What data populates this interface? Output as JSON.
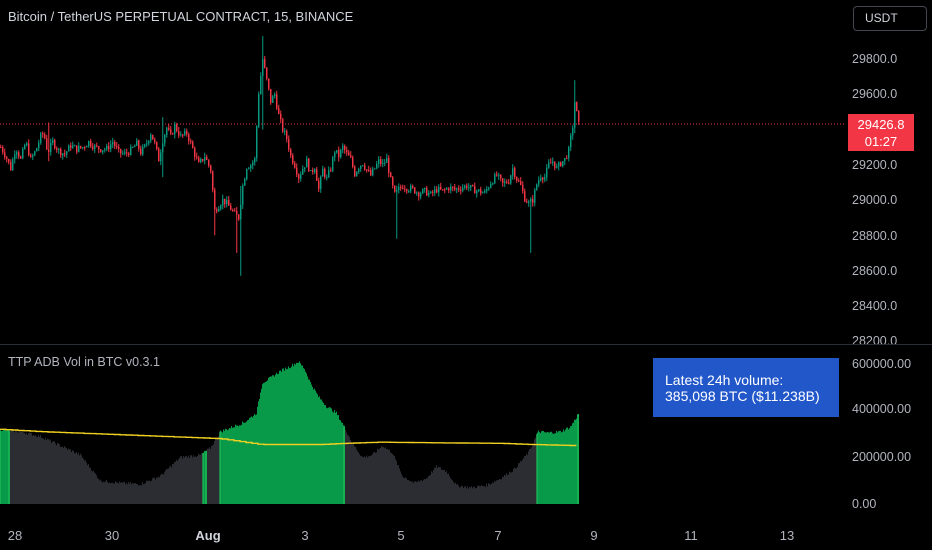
{
  "header": {
    "symbol_title": "Bitcoin / TetherUS PERPETUAL CONTRACT, 15, BINANCE",
    "currency_button": "USDT"
  },
  "price_axis": {
    "labels": [
      "29800.0",
      "29600.0",
      "29400.0",
      "29200.0",
      "29000.0",
      "28800.0",
      "28600.0",
      "28400.0",
      "28200.0"
    ],
    "current_price": "29426.8",
    "countdown": "01:27"
  },
  "indicator": {
    "title": "TTP ADB Vol in BTC v0.3.1",
    "axis_labels": [
      "600000.00",
      "400000.00",
      "200000.00",
      "0.00"
    ],
    "volume_box_line1": "Latest 24h volume:",
    "volume_box_line2": "385,098 BTC ($11.238B)"
  },
  "time_axis": {
    "labels": [
      "28",
      "30",
      "Aug",
      "3",
      "5",
      "7",
      "9",
      "11",
      "13"
    ]
  },
  "colors": {
    "up": "#089981",
    "down": "#f23645",
    "volume_green": "#089949",
    "volume_gray": "#2b2d33",
    "average_line": "#f0d020",
    "info_box": "#2157c9"
  },
  "chart_data": {
    "type": "candlestick",
    "ylim": [
      28200,
      29950
    ],
    "current_price": 29426.8,
    "price_path": [
      [
        0,
        29300
      ],
      [
        5,
        29250
      ],
      [
        10,
        29180
      ],
      [
        15,
        29300
      ],
      [
        20,
        29230
      ],
      [
        25,
        29330
      ],
      [
        30,
        29230
      ],
      [
        35,
        29280
      ],
      [
        40,
        29360
      ],
      [
        43,
        29380
      ],
      [
        47,
        29270
      ],
      [
        52,
        29330
      ],
      [
        58,
        29280
      ],
      [
        64,
        29260
      ],
      [
        70,
        29310
      ],
      [
        76,
        29290
      ],
      [
        82,
        29300
      ],
      [
        88,
        29330
      ],
      [
        94,
        29300
      ],
      [
        100,
        29290
      ],
      [
        106,
        29290
      ],
      [
        112,
        29330
      ],
      [
        118,
        29270
      ],
      [
        124,
        29260
      ],
      [
        130,
        29280
      ],
      [
        136,
        29320
      ],
      [
        140,
        29270
      ],
      [
        145,
        29310
      ],
      [
        150,
        29380
      ],
      [
        154,
        29320
      ],
      [
        158,
        29230
      ],
      [
        162,
        29340
      ],
      [
        166,
        29410
      ],
      [
        170,
        29360
      ],
      [
        174,
        29420
      ],
      [
        180,
        29360
      ],
      [
        186,
        29380
      ],
      [
        192,
        29290
      ],
      [
        198,
        29200
      ],
      [
        204,
        29250
      ],
      [
        210,
        29170
      ],
      [
        214,
        28940
      ],
      [
        218,
        28970
      ],
      [
        222,
        29000
      ],
      [
        226,
        28980
      ],
      [
        230,
        28950
      ],
      [
        234,
        28920
      ],
      [
        238,
        28900
      ],
      [
        242,
        29080
      ],
      [
        246,
        29190
      ],
      [
        250,
        29200
      ],
      [
        254,
        29230
      ],
      [
        258,
        29610
      ],
      [
        262,
        29800
      ],
      [
        266,
        29680
      ],
      [
        270,
        29560
      ],
      [
        274,
        29600
      ],
      [
        278,
        29480
      ],
      [
        282,
        29400
      ],
      [
        286,
        29350
      ],
      [
        290,
        29250
      ],
      [
        294,
        29200
      ],
      [
        298,
        29130
      ],
      [
        302,
        29180
      ],
      [
        306,
        29220
      ],
      [
        310,
        29150
      ],
      [
        314,
        29190
      ],
      [
        318,
        29060
      ],
      [
        322,
        29170
      ],
      [
        326,
        29120
      ],
      [
        330,
        29180
      ],
      [
        334,
        29280
      ],
      [
        338,
        29250
      ],
      [
        342,
        29300
      ],
      [
        346,
        29260
      ],
      [
        350,
        29230
      ],
      [
        354,
        29150
      ],
      [
        358,
        29190
      ],
      [
        362,
        29210
      ],
      [
        366,
        29170
      ],
      [
        370,
        29140
      ],
      [
        374,
        29180
      ],
      [
        378,
        29220
      ],
      [
        382,
        29200
      ],
      [
        386,
        29230
      ],
      [
        390,
        29110
      ],
      [
        394,
        29030
      ],
      [
        398,
        29060
      ],
      [
        402,
        29080
      ],
      [
        406,
        29070
      ],
      [
        412,
        29060
      ],
      [
        418,
        29040
      ],
      [
        424,
        29050
      ],
      [
        430,
        29030
      ],
      [
        436,
        29060
      ],
      [
        442,
        29050
      ],
      [
        448,
        29070
      ],
      [
        454,
        29060
      ],
      [
        460,
        29070
      ],
      [
        466,
        29080
      ],
      [
        472,
        29060
      ],
      [
        478,
        29050
      ],
      [
        484,
        29040
      ],
      [
        490,
        29100
      ],
      [
        496,
        29140
      ],
      [
        502,
        29090
      ],
      [
        508,
        29110
      ],
      [
        512,
        29180
      ],
      [
        516,
        29120
      ],
      [
        520,
        29080
      ],
      [
        524,
        29010
      ],
      [
        528,
        28980
      ],
      [
        532,
        29000
      ],
      [
        536,
        29090
      ],
      [
        540,
        29140
      ],
      [
        544,
        29130
      ],
      [
        548,
        29200
      ],
      [
        552,
        29220
      ],
      [
        556,
        29180
      ],
      [
        560,
        29210
      ],
      [
        564,
        29230
      ],
      [
        568,
        29280
      ],
      [
        572,
        29420
      ],
      [
        574,
        29560
      ],
      [
        576,
        29490
      ],
      [
        578,
        29427
      ]
    ],
    "spikes": [
      [
        48,
        29440,
        29220
      ],
      [
        162,
        29470,
        29130
      ],
      [
        214,
        29000,
        28800
      ],
      [
        236,
        28960,
        28700
      ],
      [
        241,
        29080,
        28570
      ],
      [
        262,
        29930,
        29400
      ],
      [
        396,
        29080,
        28780
      ],
      [
        530,
        29010,
        28700
      ],
      [
        574,
        29680,
        29380
      ]
    ],
    "volume": {
      "ylim": [
        0,
        680000
      ],
      "profile": [
        [
          0,
          320000
        ],
        [
          20,
          310000
        ],
        [
          40,
          290000
        ],
        [
          60,
          250000
        ],
        [
          80,
          210000
        ],
        [
          100,
          100000
        ],
        [
          120,
          90000
        ],
        [
          140,
          85000
        ],
        [
          160,
          120000
        ],
        [
          180,
          200000
        ],
        [
          200,
          210000
        ],
        [
          210,
          240000
        ],
        [
          220,
          310000
        ],
        [
          232,
          330000
        ],
        [
          244,
          350000
        ],
        [
          256,
          390000
        ],
        [
          262,
          520000
        ],
        [
          270,
          540000
        ],
        [
          280,
          570000
        ],
        [
          290,
          590000
        ],
        [
          298,
          610000
        ],
        [
          304,
          580000
        ],
        [
          310,
          520000
        ],
        [
          318,
          460000
        ],
        [
          326,
          420000
        ],
        [
          336,
          390000
        ],
        [
          344,
          330000
        ],
        [
          352,
          260000
        ],
        [
          362,
          200000
        ],
        [
          372,
          210000
        ],
        [
          382,
          250000
        ],
        [
          392,
          220000
        ],
        [
          402,
          120000
        ],
        [
          414,
          90000
        ],
        [
          426,
          110000
        ],
        [
          436,
          160000
        ],
        [
          446,
          140000
        ],
        [
          456,
          80000
        ],
        [
          470,
          70000
        ],
        [
          486,
          80000
        ],
        [
          500,
          110000
        ],
        [
          514,
          150000
        ],
        [
          528,
          220000
        ],
        [
          538,
          310000
        ],
        [
          548,
          305000
        ],
        [
          560,
          310000
        ],
        [
          570,
          330000
        ],
        [
          578,
          385098
        ]
      ],
      "green_ranges": [
        [
          0,
          9
        ],
        [
          203,
          206
        ],
        [
          220,
          344
        ],
        [
          537,
          578
        ]
      ],
      "average": [
        [
          0,
          320000
        ],
        [
          20,
          315000
        ],
        [
          40,
          310000
        ],
        [
          100,
          300000
        ],
        [
          160,
          290000
        ],
        [
          220,
          280000
        ],
        [
          260,
          255000
        ],
        [
          320,
          255000
        ],
        [
          344,
          260000
        ],
        [
          380,
          265000
        ],
        [
          440,
          262000
        ],
        [
          500,
          260000
        ],
        [
          530,
          255000
        ],
        [
          578,
          250000
        ]
      ]
    }
  }
}
